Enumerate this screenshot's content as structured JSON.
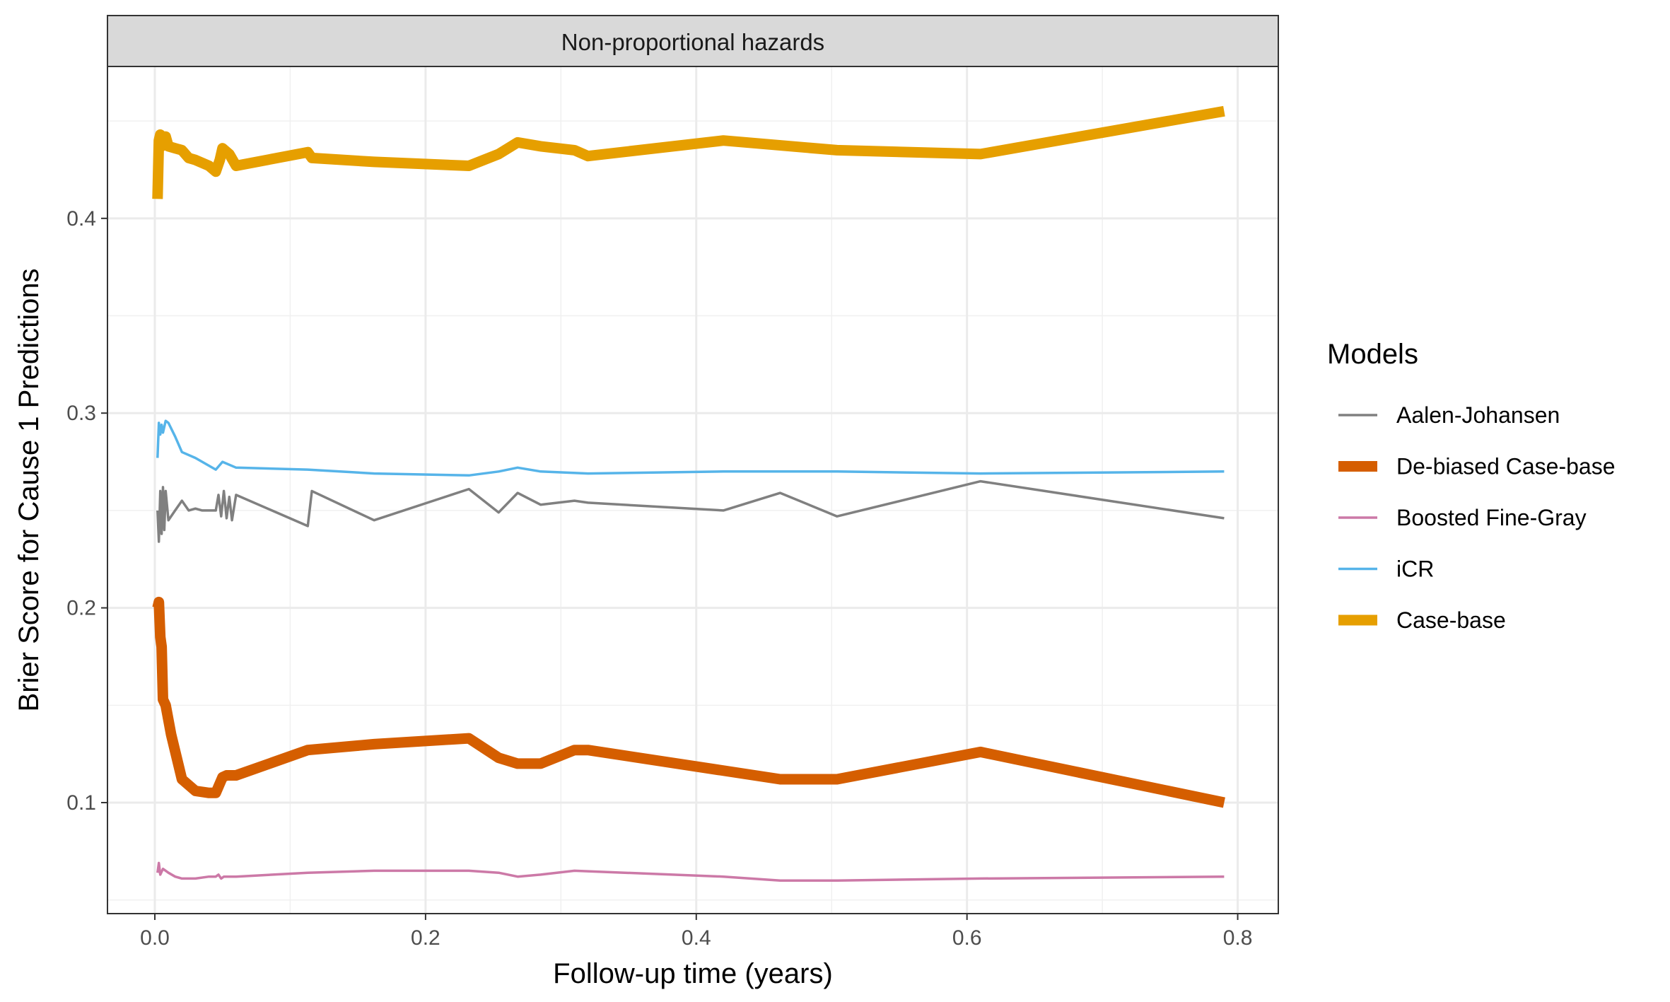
{
  "chart_data": {
    "type": "line",
    "facet_label": "Non-proportional hazards",
    "title": "",
    "xlabel": "Follow-up time (years)",
    "ylabel": "Brier Score for Cause 1 Predictions",
    "xlim": [
      -0.035,
      0.83
    ],
    "ylim": [
      0.043,
      0.478
    ],
    "x_ticks": [
      0.0,
      0.2,
      0.4,
      0.6,
      0.8
    ],
    "x_tick_labels": [
      "0.0",
      "0.2",
      "0.4",
      "0.6",
      "0.8"
    ],
    "y_ticks": [
      0.1,
      0.2,
      0.3,
      0.4
    ],
    "y_tick_labels": [
      "0.1",
      "0.2",
      "0.3",
      "0.4"
    ],
    "grid": true,
    "legend": {
      "title": "Models",
      "position": "right"
    },
    "series": [
      {
        "name": "Aalen-Johansen",
        "color": "#808080",
        "line_weight": "thin",
        "x": [
          0.002,
          0.003,
          0.004,
          0.005,
          0.006,
          0.007,
          0.008,
          0.01,
          0.015,
          0.02,
          0.025,
          0.03,
          0.035,
          0.04,
          0.045,
          0.047,
          0.049,
          0.051,
          0.053,
          0.055,
          0.057,
          0.06,
          0.113,
          0.116,
          0.162,
          0.232,
          0.254,
          0.268,
          0.285,
          0.31,
          0.32,
          0.42,
          0.462,
          0.504,
          0.61,
          0.79
        ],
        "y": [
          0.25,
          0.234,
          0.26,
          0.238,
          0.262,
          0.24,
          0.26,
          0.245,
          0.25,
          0.255,
          0.25,
          0.251,
          0.25,
          0.25,
          0.25,
          0.258,
          0.247,
          0.26,
          0.246,
          0.257,
          0.245,
          0.258,
          0.242,
          0.26,
          0.245,
          0.261,
          0.249,
          0.259,
          0.253,
          0.255,
          0.254,
          0.25,
          0.259,
          0.247,
          0.265,
          0.246
        ]
      },
      {
        "name": "De-biased Case-base",
        "color": "#D55E00",
        "line_weight": "thick",
        "x": [
          0.002,
          0.003,
          0.004,
          0.005,
          0.006,
          0.008,
          0.012,
          0.02,
          0.03,
          0.04,
          0.045,
          0.05,
          0.053,
          0.06,
          0.113,
          0.162,
          0.232,
          0.254,
          0.268,
          0.285,
          0.31,
          0.32,
          0.462,
          0.504,
          0.61,
          0.79
        ],
        "y": [
          0.2,
          0.203,
          0.185,
          0.18,
          0.153,
          0.15,
          0.135,
          0.112,
          0.106,
          0.105,
          0.105,
          0.113,
          0.114,
          0.114,
          0.127,
          0.13,
          0.133,
          0.123,
          0.12,
          0.12,
          0.127,
          0.127,
          0.112,
          0.112,
          0.126,
          0.1
        ]
      },
      {
        "name": "Boosted Fine-Gray",
        "color": "#CC79A7",
        "line_weight": "thin",
        "x": [
          0.002,
          0.003,
          0.004,
          0.006,
          0.01,
          0.015,
          0.02,
          0.025,
          0.03,
          0.04,
          0.045,
          0.047,
          0.049,
          0.051,
          0.06,
          0.113,
          0.162,
          0.232,
          0.254,
          0.268,
          0.285,
          0.31,
          0.42,
          0.462,
          0.504,
          0.61,
          0.79
        ],
        "y": [
          0.064,
          0.069,
          0.063,
          0.066,
          0.064,
          0.062,
          0.061,
          0.061,
          0.061,
          0.062,
          0.062,
          0.063,
          0.061,
          0.062,
          0.062,
          0.064,
          0.065,
          0.065,
          0.064,
          0.062,
          0.063,
          0.065,
          0.062,
          0.06,
          0.06,
          0.061,
          0.062
        ]
      },
      {
        "name": "iCR",
        "color": "#56B4E9",
        "line_weight": "thin",
        "x": [
          0.002,
          0.003,
          0.004,
          0.005,
          0.006,
          0.008,
          0.01,
          0.015,
          0.02,
          0.03,
          0.04,
          0.045,
          0.05,
          0.06,
          0.113,
          0.162,
          0.232,
          0.254,
          0.268,
          0.285,
          0.32,
          0.42,
          0.504,
          0.61,
          0.79
        ],
        "y": [
          0.277,
          0.295,
          0.289,
          0.294,
          0.29,
          0.296,
          0.295,
          0.288,
          0.28,
          0.277,
          0.273,
          0.271,
          0.275,
          0.272,
          0.271,
          0.269,
          0.268,
          0.27,
          0.272,
          0.27,
          0.269,
          0.27,
          0.27,
          0.269,
          0.27
        ]
      },
      {
        "name": "Case-base",
        "color": "#E69F00",
        "line_weight": "thick",
        "x": [
          0.002,
          0.003,
          0.004,
          0.005,
          0.006,
          0.008,
          0.01,
          0.015,
          0.02,
          0.025,
          0.03,
          0.04,
          0.045,
          0.048,
          0.05,
          0.055,
          0.06,
          0.113,
          0.116,
          0.162,
          0.232,
          0.254,
          0.268,
          0.285,
          0.31,
          0.32,
          0.42,
          0.504,
          0.61,
          0.79
        ],
        "y": [
          0.41,
          0.44,
          0.443,
          0.437,
          0.44,
          0.442,
          0.437,
          0.436,
          0.435,
          0.431,
          0.43,
          0.427,
          0.424,
          0.43,
          0.436,
          0.433,
          0.427,
          0.434,
          0.431,
          0.429,
          0.427,
          0.433,
          0.439,
          0.437,
          0.435,
          0.432,
          0.44,
          0.435,
          0.433,
          0.455
        ]
      }
    ]
  }
}
